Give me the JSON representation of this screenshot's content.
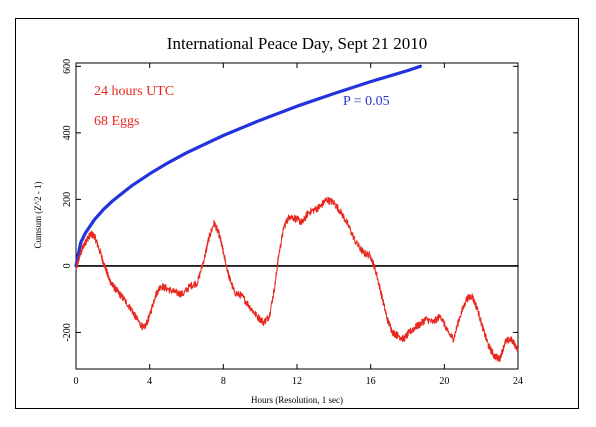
{
  "chart_data": {
    "type": "line",
    "title": "International Peace Day, Sept 21 2010",
    "xlabel": "Hours (Resolution, 1 sec)",
    "ylabel": "Cumsum (Z^2 - 1)",
    "xlim": [
      0,
      24
    ],
    "ylim": [
      -310,
      610
    ],
    "x_ticks": [
      0,
      4,
      8,
      12,
      16,
      20,
      24
    ],
    "y_ticks": [
      -200,
      0,
      200,
      400,
      600
    ],
    "annotations": [
      {
        "text": "24 hours UTC",
        "color": "#e8281f"
      },
      {
        "text": "68 Eggs",
        "color": "#e8281f"
      },
      {
        "text": "P = 0.05",
        "color": "#2233cc"
      }
    ],
    "series": [
      {
        "name": "P = 0.05",
        "color": "#2233dd",
        "style": "thick",
        "x": [
          0,
          0.25,
          0.5,
          1,
          1.5,
          2,
          3,
          4,
          5,
          6,
          8,
          10,
          12,
          14,
          16,
          18,
          18.7
        ],
        "y": [
          0,
          69,
          98,
          139,
          170,
          196,
          240,
          277,
          310,
          340,
          392,
          438,
          480,
          518,
          554,
          587,
          600
        ]
      },
      {
        "name": "Cumsum",
        "color": "#e8281f",
        "style": "noisy",
        "x": [
          0,
          0.2,
          0.4,
          0.6,
          0.8,
          1.0,
          1.2,
          1.5,
          1.8,
          2.0,
          2.3,
          2.6,
          3.0,
          3.3,
          3.7,
          4.0,
          4.3,
          4.6,
          5.0,
          5.4,
          5.8,
          6.2,
          6.6,
          7.0,
          7.2,
          7.5,
          7.8,
          8.0,
          8.3,
          8.6,
          9.0,
          9.4,
          9.8,
          10.2,
          10.5,
          10.8,
          11.0,
          11.3,
          11.6,
          12.0,
          12.3,
          12.6,
          13.0,
          13.3,
          13.6,
          14.0,
          14.4,
          14.8,
          15.2,
          15.6,
          16.0,
          16.3,
          16.6,
          16.9,
          17.2,
          17.5,
          17.8,
          18.1,
          18.4,
          18.7,
          19.0,
          19.4,
          19.8,
          20.2,
          20.5,
          20.8,
          21.2,
          21.5,
          21.8,
          22.1,
          22.4,
          22.7,
          23.0,
          23.3,
          23.6,
          24.0
        ],
        "y": [
          -10,
          30,
          60,
          80,
          95,
          90,
          60,
          10,
          -40,
          -60,
          -80,
          -100,
          -130,
          -160,
          -190,
          -150,
          -90,
          -60,
          -70,
          -80,
          -85,
          -60,
          -50,
          30,
          80,
          130,
          90,
          40,
          -30,
          -80,
          -90,
          -120,
          -150,
          -170,
          -150,
          -60,
          30,
          120,
          150,
          140,
          130,
          160,
          170,
          180,
          200,
          190,
          160,
          120,
          70,
          40,
          30,
          -20,
          -90,
          -160,
          -200,
          -210,
          -220,
          -200,
          -185,
          -175,
          -160,
          -170,
          -150,
          -200,
          -220,
          -160,
          -100,
          -90,
          -130,
          -190,
          -240,
          -270,
          -280,
          -230,
          -220,
          -250
        ]
      },
      {
        "name": "Baseline",
        "color": "#000000",
        "style": "flat",
        "x": [
          0,
          24
        ],
        "y": [
          0,
          0
        ]
      }
    ]
  }
}
